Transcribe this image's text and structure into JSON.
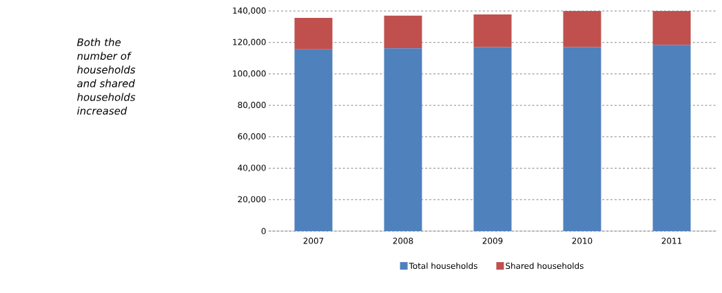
{
  "chart_data": {
    "type": "bar",
    "stacked": true,
    "annotations": [
      "*Both the number of households and shared households increased*"
    ],
    "categories": [
      "2007",
      "2008",
      "2009",
      "2010",
      "2011"
    ],
    "series": [
      {
        "name": "Total households",
        "color": "#4f81bd",
        "values": [
          115600,
          116300,
          117000,
          117000,
          118500
        ]
      },
      {
        "name": "Shared households",
        "color": "#c0504d",
        "values": [
          20000,
          20700,
          20800,
          23000,
          21500
        ]
      }
    ],
    "ylim": [
      0,
      140000
    ],
    "yticks": [
      {
        "value": 0,
        "label": "0"
      },
      {
        "value": 20000,
        "label": "20,000"
      },
      {
        "value": 40000,
        "label": "40,000"
      },
      {
        "value": 60000,
        "label": "60,000"
      },
      {
        "value": 80000,
        "label": "80,000"
      },
      {
        "value": 100000,
        "label": "100,000"
      },
      {
        "value": 120000,
        "label": "120,000"
      },
      {
        "value": 140000,
        "label": "140,000"
      }
    ],
    "grid": "y",
    "legend": "bottom"
  }
}
